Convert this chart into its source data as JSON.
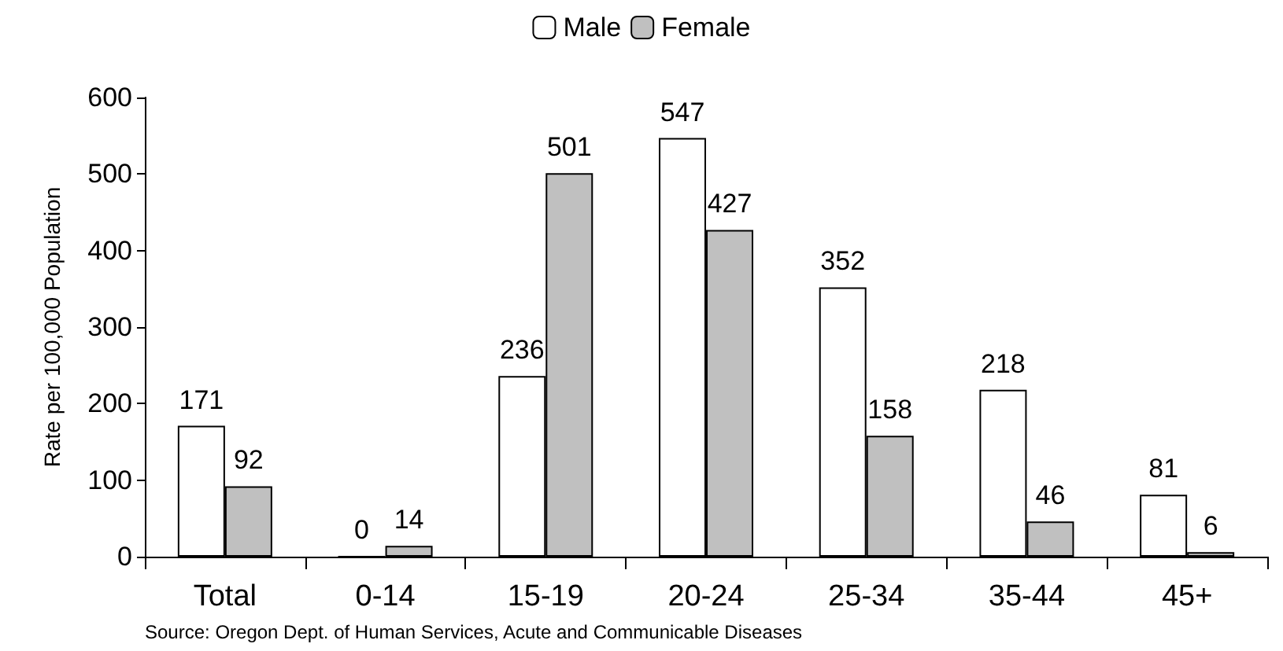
{
  "chart_data": {
    "type": "bar",
    "ylabel": "Rate per 100,000 Population",
    "categories": [
      "Total",
      "0-14",
      "15-19",
      "20-24",
      "25-34",
      "35-44",
      "45+"
    ],
    "series": [
      {
        "name": "Male",
        "color": "#ffffff",
        "values": [
          171,
          0,
          236,
          547,
          352,
          218,
          81
        ]
      },
      {
        "name": "Female",
        "color": "#c0c0c0",
        "values": [
          92,
          14,
          501,
          427,
          158,
          46,
          6
        ]
      }
    ],
    "ylim": [
      0,
      600
    ],
    "yticks": [
      0,
      100,
      200,
      300,
      400,
      500,
      600
    ],
    "grid": false,
    "legend": "top",
    "data_labels": true,
    "annotations": [
      "Source: Oregon Dept. of Human Services, Acute and Communicable Diseases"
    ]
  }
}
